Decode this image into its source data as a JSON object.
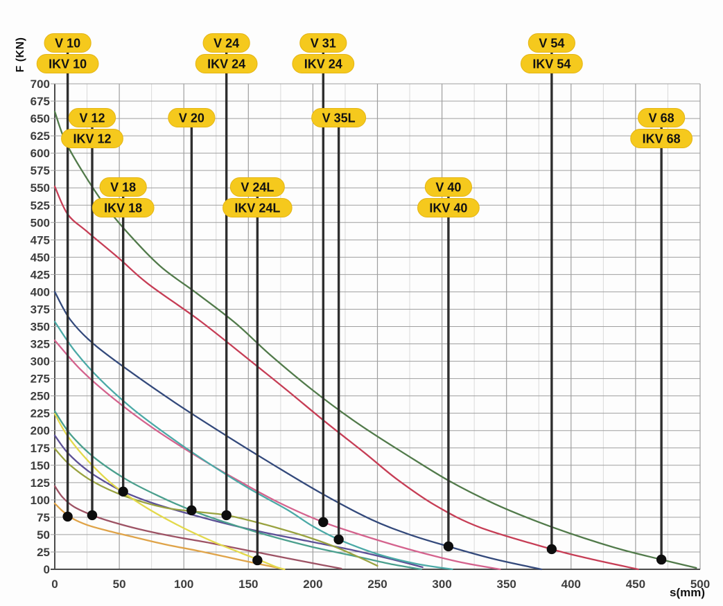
{
  "axes": {
    "y_title": "F (KN)",
    "x_title": "s(mm)"
  },
  "chart_data": {
    "type": "line",
    "title": "",
    "xlabel": "s(mm)",
    "ylabel": "F (KN)",
    "xlim": [
      0,
      500
    ],
    "ylim": [
      0,
      700
    ],
    "x_tick_step": 50,
    "x_minor_step": 25,
    "y_tick_step": 25,
    "grid": "on",
    "legend_position": "none",
    "colors": {
      "pill_fill": "#f5c91d",
      "pill_stroke": "#e4b414",
      "pill_text": "#121212",
      "marker_line": "#2e2e2e",
      "marker_dot": "#0d0d0d",
      "grid_major": "#9e9e9e",
      "grid_minor": "#d9d9d9",
      "axis_line": "#4a4a4a"
    },
    "series": [
      {
        "name": "V 10 / IKV 10",
        "color": "#dfa348",
        "points": [
          [
            0,
            95
          ],
          [
            6,
            84
          ],
          [
            14,
            73
          ],
          [
            25,
            64
          ],
          [
            40,
            56
          ],
          [
            60,
            47
          ],
          [
            85,
            36
          ],
          [
            110,
            27
          ],
          [
            135,
            17
          ],
          [
            160,
            7
          ],
          [
            178,
            0
          ]
        ]
      },
      {
        "name": "V 12 / IKV 12",
        "color": "#9d5264",
        "points": [
          [
            0,
            120
          ],
          [
            6,
            104
          ],
          [
            15,
            90
          ],
          [
            29,
            78
          ],
          [
            45,
            68
          ],
          [
            65,
            58
          ],
          [
            90,
            48
          ],
          [
            120,
            38
          ],
          [
            150,
            27
          ],
          [
            180,
            16
          ],
          [
            205,
            7
          ],
          [
            222,
            1
          ]
        ]
      },
      {
        "name": "V 18 / IKV 18",
        "color": "#5c5096",
        "points": [
          [
            0,
            193
          ],
          [
            10,
            168
          ],
          [
            25,
            143
          ],
          [
            40,
            125
          ],
          [
            53,
            112
          ],
          [
            75,
            96
          ],
          [
            100,
            82
          ],
          [
            130,
            67
          ],
          [
            160,
            54
          ],
          [
            195,
            41
          ],
          [
            230,
            28
          ],
          [
            260,
            15
          ],
          [
            285,
            3
          ]
        ]
      },
      {
        "name": "V 20",
        "color": "#4a9f8d",
        "points": [
          [
            0,
            228
          ],
          [
            12,
            195
          ],
          [
            30,
            162
          ],
          [
            55,
            130
          ],
          [
            80,
            106
          ],
          [
            106,
            85
          ],
          [
            135,
            66
          ],
          [
            165,
            49
          ],
          [
            200,
            32
          ],
          [
            235,
            18
          ],
          [
            262,
            7
          ],
          [
            284,
            0
          ]
        ]
      },
      {
        "name": "V 24 / IKV 24",
        "color": "#99a23f",
        "points": [
          [
            0,
            174
          ],
          [
            12,
            150
          ],
          [
            30,
            126
          ],
          [
            55,
            105
          ],
          [
            85,
            89
          ],
          [
            110,
            83
          ],
          [
            133,
            78
          ],
          [
            160,
            66
          ],
          [
            190,
            50
          ],
          [
            215,
            34
          ],
          [
            235,
            18
          ],
          [
            250,
            5
          ]
        ]
      },
      {
        "name": "V 24L / IKV 24L",
        "color": "#e3d94b",
        "points": [
          [
            0,
            224
          ],
          [
            10,
            192
          ],
          [
            25,
            158
          ],
          [
            45,
            122
          ],
          [
            70,
            90
          ],
          [
            95,
            64
          ],
          [
            120,
            42
          ],
          [
            145,
            23
          ],
          [
            159,
            13
          ],
          [
            172,
            3
          ],
          [
            178,
            0
          ]
        ]
      },
      {
        "name": "V 31 / IKV 24",
        "color": "#d4628d",
        "points": [
          [
            0,
            330
          ],
          [
            20,
            288
          ],
          [
            45,
            247
          ],
          [
            75,
            205
          ],
          [
            110,
            163
          ],
          [
            145,
            125
          ],
          [
            175,
            95
          ],
          [
            208,
            68
          ],
          [
            245,
            45
          ],
          [
            280,
            26
          ],
          [
            315,
            10
          ],
          [
            345,
            0
          ]
        ]
      },
      {
        "name": "V 35L",
        "color": "#4aa9a6",
        "points": [
          [
            0,
            357
          ],
          [
            15,
            316
          ],
          [
            35,
            274
          ],
          [
            60,
            232
          ],
          [
            90,
            190
          ],
          [
            120,
            152
          ],
          [
            150,
            117
          ],
          [
            180,
            86
          ],
          [
            200,
            62
          ],
          [
            220,
            43
          ],
          [
            250,
            22
          ],
          [
            280,
            8
          ],
          [
            308,
            0
          ]
        ]
      },
      {
        "name": "V 40 / IKV 40",
        "color": "#33497b",
        "points": [
          [
            0,
            400
          ],
          [
            12,
            360
          ],
          [
            30,
            325
          ],
          [
            60,
            283
          ],
          [
            95,
            238
          ],
          [
            130,
            196
          ],
          [
            170,
            150
          ],
          [
            208,
            108
          ],
          [
            245,
            72
          ],
          [
            275,
            50
          ],
          [
            305,
            33
          ],
          [
            340,
            15
          ],
          [
            377,
            0
          ]
        ]
      },
      {
        "name": "V 54 / IKV 54",
        "color": "#c63d55",
        "points": [
          [
            0,
            552
          ],
          [
            10,
            512
          ],
          [
            25,
            487
          ],
          [
            50,
            448
          ],
          [
            72,
            412
          ],
          [
            112,
            359
          ],
          [
            150,
            303
          ],
          [
            180,
            258
          ],
          [
            210,
            212
          ],
          [
            240,
            168
          ],
          [
            265,
            130
          ],
          [
            295,
            92
          ],
          [
            330,
            60
          ],
          [
            385,
            29
          ],
          [
            415,
            15
          ],
          [
            452,
            0
          ]
        ]
      },
      {
        "name": "V 68 / IKV 68",
        "color": "#517a4a",
        "points": [
          [
            0,
            660
          ],
          [
            8,
            618
          ],
          [
            22,
            572
          ],
          [
            40,
            522
          ],
          [
            60,
            478
          ],
          [
            83,
            435
          ],
          [
            110,
            398
          ],
          [
            140,
            355
          ],
          [
            167,
            309
          ],
          [
            200,
            258
          ],
          [
            235,
            210
          ],
          [
            270,
            168
          ],
          [
            305,
            128
          ],
          [
            340,
            95
          ],
          [
            375,
            68
          ],
          [
            410,
            45
          ],
          [
            440,
            28
          ],
          [
            470,
            14
          ],
          [
            497,
            2
          ]
        ]
      }
    ],
    "markers": [
      {
        "id": "v10",
        "labels": [
          "V 10",
          "IKV 10"
        ],
        "row": "A",
        "s": 10,
        "F": 76
      },
      {
        "id": "v12",
        "labels": [
          "V 12",
          "IKV 12"
        ],
        "row": "B",
        "s": 29,
        "F": 78
      },
      {
        "id": "v18",
        "labels": [
          "V 18",
          "IKV 18"
        ],
        "row": "C",
        "s": 53,
        "F": 112
      },
      {
        "id": "v20",
        "labels": [
          "V 20"
        ],
        "row": "B",
        "s": 106,
        "F": 85
      },
      {
        "id": "v24",
        "labels": [
          "V 24",
          "IKV 24"
        ],
        "row": "A",
        "s": 133,
        "F": 78
      },
      {
        "id": "v24l",
        "labels": [
          "V 24L",
          "IKV 24L"
        ],
        "row": "C",
        "s": 157,
        "F": 13
      },
      {
        "id": "v31",
        "labels": [
          "V 31",
          "IKV 24"
        ],
        "row": "A",
        "s": 208,
        "F": 68
      },
      {
        "id": "v35l",
        "labels": [
          "V 35L"
        ],
        "row": "B",
        "s": 220,
        "F": 43
      },
      {
        "id": "v40",
        "labels": [
          "V 40",
          "IKV 40"
        ],
        "row": "C",
        "s": 305,
        "F": 33
      },
      {
        "id": "v54",
        "labels": [
          "V 54",
          "IKV 54"
        ],
        "row": "A",
        "s": 385,
        "F": 29
      },
      {
        "id": "v68",
        "labels": [
          "V 68",
          "IKV 68"
        ],
        "row": "B",
        "s": 470,
        "F": 14
      }
    ],
    "x_ticks": [
      0,
      50,
      100,
      150,
      200,
      250,
      300,
      350,
      400,
      450,
      500
    ],
    "y_ticks": [
      0,
      25,
      50,
      75,
      100,
      125,
      150,
      175,
      200,
      225,
      250,
      275,
      300,
      325,
      350,
      375,
      400,
      425,
      450,
      475,
      500,
      525,
      550,
      575,
      600,
      625,
      650,
      675,
      700
    ]
  }
}
